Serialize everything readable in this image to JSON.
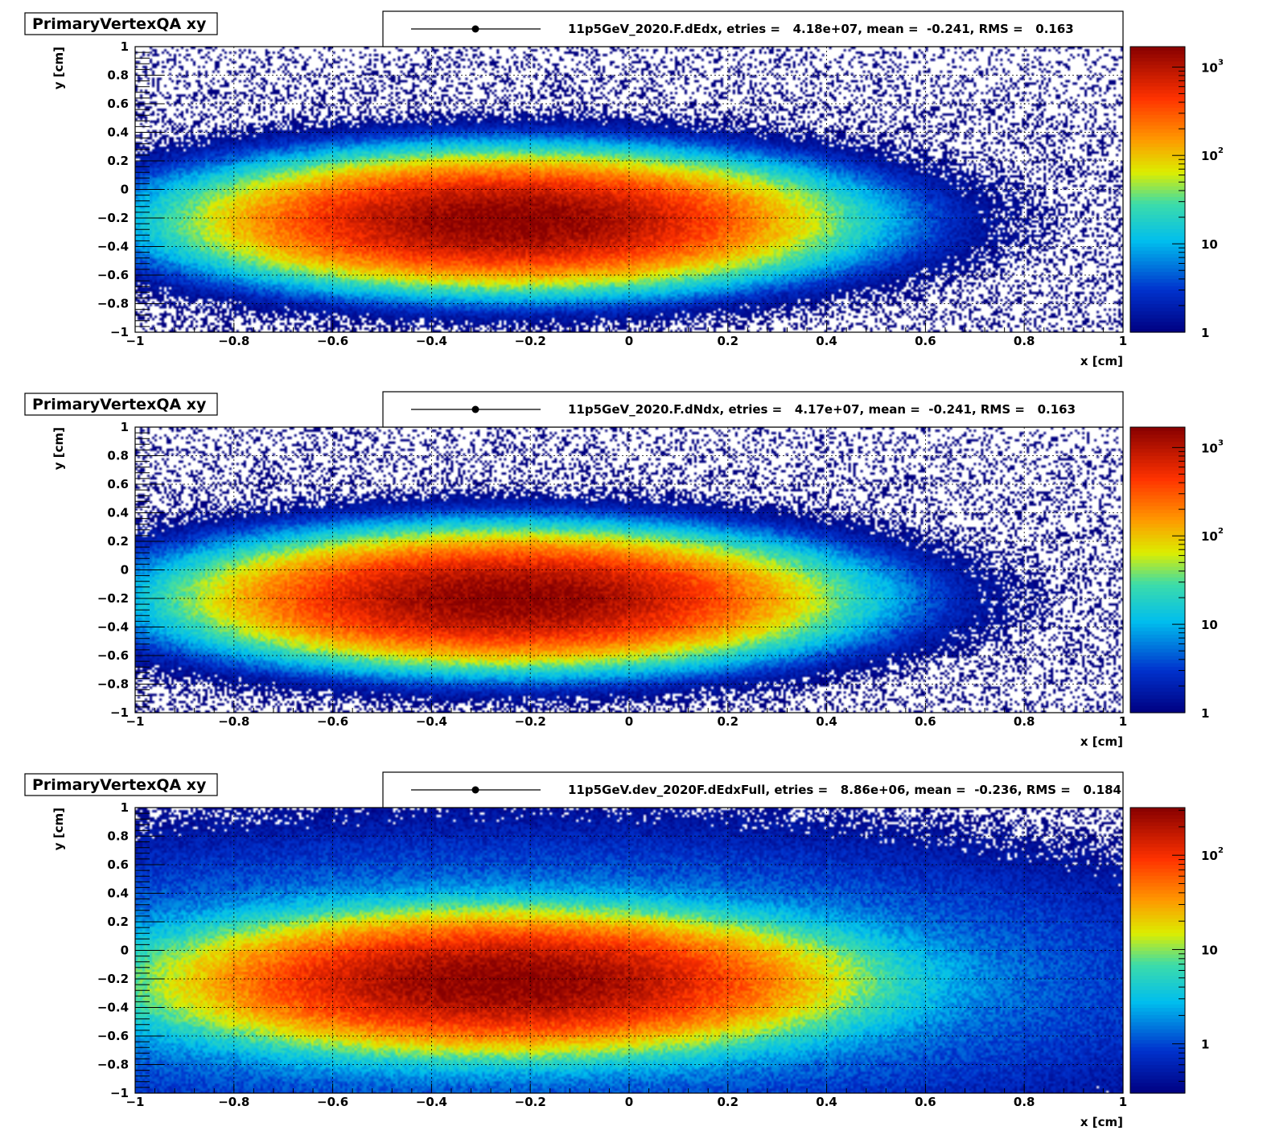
{
  "chart_data": [
    {
      "type": "heatmap",
      "title": "PrimaryVertexQA xy",
      "series_label": "11p5GeV_2020.F.dEdx, etries =   4.18e+07, mean =  -0.241, RMS =   0.163",
      "xlabel": "x [cm]",
      "ylabel": "y [cm]",
      "xlim": [
        -1,
        1
      ],
      "ylim": [
        -1,
        1
      ],
      "x_ticks": [
        "−1",
        "−0.8",
        "−0.6",
        "−0.4",
        "−0.2",
        "0",
        "0.2",
        "0.4",
        "0.6",
        "0.8",
        "1"
      ],
      "y_ticks": [
        "−1",
        "−0.8",
        "−0.6",
        "−0.4",
        "−0.2",
        "0",
        "0.2",
        "0.4",
        "0.6",
        "0.8",
        "1"
      ],
      "grid": true,
      "z_scale": "log",
      "z_range": [
        1,
        1700
      ],
      "z_ticks": [
        {
          "value": 1,
          "base": "1",
          "exp": ""
        },
        {
          "value": 10,
          "base": "10",
          "exp": ""
        },
        {
          "value": 100,
          "base": "10",
          "exp": "2"
        },
        {
          "value": 1000,
          "base": "10",
          "exp": "3"
        }
      ],
      "entries": 41800000,
      "mean_x": -0.241,
      "rms_x": 0.163,
      "peak": {
        "x": -0.24,
        "y": -0.22
      },
      "sigma_y": 0.17,
      "color_palette": [
        "#000080",
        "#0033cc",
        "#00bbee",
        "#33ddaa",
        "#ddee00",
        "#ff9900",
        "#ff3300",
        "#8b0000"
      ]
    },
    {
      "type": "heatmap",
      "title": "PrimaryVertexQA xy",
      "series_label": "11p5GeV_2020.F.dNdx, etries =   4.17e+07, mean =  -0.241, RMS =   0.163",
      "xlabel": "x [cm]",
      "ylabel": "y [cm]",
      "xlim": [
        -1,
        1
      ],
      "ylim": [
        -1,
        1
      ],
      "x_ticks": [
        "−1",
        "−0.8",
        "−0.6",
        "−0.4",
        "−0.2",
        "0",
        "0.2",
        "0.4",
        "0.6",
        "0.8",
        "1"
      ],
      "y_ticks": [
        "−1",
        "−0.8",
        "−0.6",
        "−0.4",
        "−0.2",
        "0",
        "0.2",
        "0.4",
        "0.6",
        "0.8",
        "1"
      ],
      "grid": true,
      "z_scale": "log",
      "z_range": [
        1,
        1700
      ],
      "z_ticks": [
        {
          "value": 1,
          "base": "1",
          "exp": ""
        },
        {
          "value": 10,
          "base": "10",
          "exp": ""
        },
        {
          "value": 100,
          "base": "10",
          "exp": "2"
        },
        {
          "value": 1000,
          "base": "10",
          "exp": "3"
        }
      ],
      "entries": 41700000,
      "mean_x": -0.241,
      "rms_x": 0.163,
      "peak": {
        "x": -0.24,
        "y": -0.2
      },
      "sigma_y": 0.17,
      "color_palette": [
        "#000080",
        "#0033cc",
        "#00bbee",
        "#33ddaa",
        "#ddee00",
        "#ff9900",
        "#ff3300",
        "#8b0000"
      ]
    },
    {
      "type": "heatmap",
      "title": "PrimaryVertexQA xy",
      "series_label": "11p5GeV.dev_2020F.dEdxFull, etries =   8.86e+06, mean =  -0.236, RMS =   0.184",
      "xlabel": "x [cm]",
      "ylabel": "y [cm]",
      "xlim": [
        -1,
        1
      ],
      "ylim": [
        -1,
        1
      ],
      "x_ticks": [
        "−1",
        "−0.8",
        "−0.6",
        "−0.4",
        "−0.2",
        "0",
        "0.2",
        "0.4",
        "0.6",
        "0.8",
        "1"
      ],
      "y_ticks": [
        "−1",
        "−0.8",
        "−0.6",
        "−0.4",
        "−0.2",
        "0",
        "0.2",
        "0.4",
        "0.6",
        "0.8",
        "1"
      ],
      "grid": true,
      "z_scale": "log",
      "z_range": [
        0.3,
        320
      ],
      "z_ticks": [
        {
          "value": 1,
          "base": "1",
          "exp": ""
        },
        {
          "value": 10,
          "base": "10",
          "exp": ""
        },
        {
          "value": 100,
          "base": "10",
          "exp": "2"
        }
      ],
      "entries": 8860000,
      "mean_x": -0.236,
      "rms_x": 0.184,
      "peak": {
        "x": -0.25,
        "y": -0.22
      },
      "sigma_y": 0.19,
      "color_palette": [
        "#000080",
        "#0033cc",
        "#00bbee",
        "#33ddaa",
        "#ddee00",
        "#ff9900",
        "#ff3300",
        "#8b0000"
      ]
    }
  ]
}
